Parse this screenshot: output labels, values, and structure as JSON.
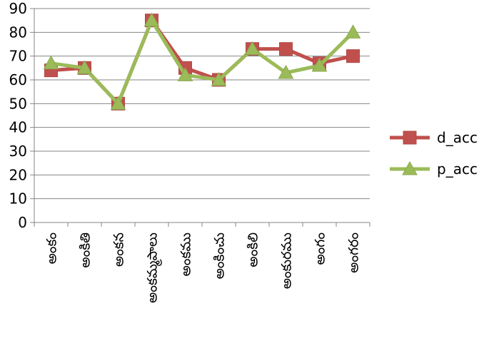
{
  "chart_data": {
    "type": "line",
    "categories": [
      "అంకం",
      "అంకితి",
      "అంకన",
      "అంకమ్మపాలు",
      "అంకము",
      "అంకించు",
      "అంకిలి",
      "అంకురము",
      "అంగం",
      "అంగరం"
    ],
    "series": [
      {
        "name": "d_acc",
        "values": [
          64,
          65,
          50,
          85,
          65,
          60,
          73,
          73,
          67,
          70
        ],
        "color": "#c0504d",
        "marker": "square"
      },
      {
        "name": "p_acc",
        "values": [
          67,
          65,
          50,
          85,
          62,
          60,
          73,
          63,
          66,
          80
        ],
        "color": "#9bbb59",
        "marker": "triangle"
      }
    ],
    "ylim": [
      0,
      90
    ],
    "yticks": [
      0,
      10,
      20,
      30,
      40,
      50,
      60,
      70,
      80,
      90
    ],
    "grid": "horizontal",
    "legend": "right"
  }
}
